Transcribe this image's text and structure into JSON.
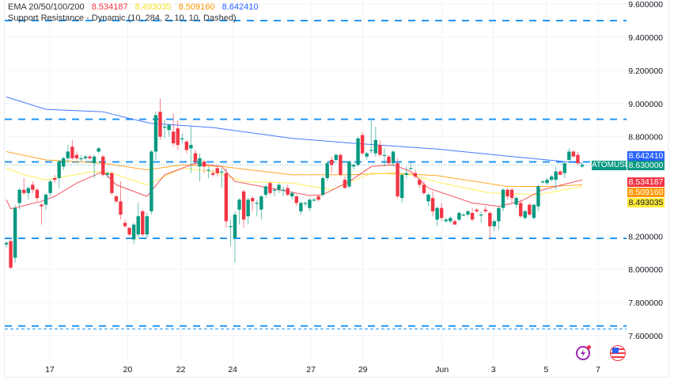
{
  "legend": {
    "ema_label": "EMA 20/50/100/200",
    "ema_values": [
      "8.534187",
      "8.493035",
      "8.509160",
      "8.642410"
    ],
    "sr_label": "Support Resistance - Dynamic (10, 284, 2, 10, 10, Dashed)"
  },
  "symbol": "ATOMUSD",
  "price_labels": [
    {
      "text": "8.642410",
      "bg": "#2962ff",
      "fg": "#ffffff"
    },
    {
      "text": "8.630000",
      "bg": "#089981",
      "fg": "#ffffff"
    },
    {
      "text": "8.534187",
      "bg": "#f23645",
      "fg": "#ffffff"
    },
    {
      "text": "8.509160",
      "bg": "#ff9800",
      "fg": "#ffffff"
    },
    {
      "text": "8.493035",
      "bg": "#ffeb3b",
      "fg": "#131722"
    }
  ],
  "icons": [
    "lightning-alert-icon",
    "us-flag-icon"
  ],
  "colors": {
    "up": "#089981",
    "down": "#f23645",
    "ema20": "#f23645",
    "ema50": "#ffeb3b",
    "ema100": "#ff9800",
    "ema200": "#2962ff",
    "sr": "#2196f3"
  },
  "chart_data": {
    "type": "candlestick",
    "title": "",
    "ylim": [
      7.58,
      9.62
    ],
    "grid": true,
    "y_ticks": [
      "9.600000",
      "9.400000",
      "9.200000",
      "9.000000",
      "8.800000",
      "8.200000",
      "8.000000",
      "7.800000",
      "7.600000"
    ],
    "y_tick_values": [
      9.6,
      9.4,
      9.2,
      9.0,
      8.8,
      8.2,
      8.0,
      7.8,
      7.6
    ],
    "x_ticks": [
      {
        "label": "17",
        "bar": 9.9
      },
      {
        "label": "20",
        "bar": 27.6
      },
      {
        "label": "22",
        "bar": 39.7
      },
      {
        "label": "24",
        "bar": 51.5
      },
      {
        "label": "27",
        "bar": 69.3
      },
      {
        "label": "29",
        "bar": 81.1
      },
      {
        "label": "Jun",
        "bar": 99.1
      },
      {
        "label": "3",
        "bar": 110.8
      },
      {
        "label": "5",
        "bar": 122.8
      },
      {
        "label": "7",
        "bar": 134.6
      }
    ],
    "last_price": 8.63,
    "support_resistance": [
      9.5,
      8.905,
      8.648,
      8.187,
      7.658,
      7.64
    ],
    "ohlc": [
      [
        8.15,
        8.17,
        8.13,
        8.16
      ],
      [
        8.17,
        8.18,
        8.0,
        8.01
      ],
      [
        8.07,
        8.39,
        8.04,
        8.37
      ],
      [
        8.4,
        8.49,
        8.36,
        8.48
      ],
      [
        8.48,
        8.55,
        8.45,
        8.46
      ],
      [
        8.46,
        8.5,
        8.42,
        8.49
      ],
      [
        8.51,
        8.53,
        8.46,
        8.48
      ],
      [
        8.48,
        8.49,
        8.41,
        8.43
      ],
      [
        8.39,
        8.4,
        8.27,
        8.38
      ],
      [
        8.39,
        8.46,
        8.36,
        8.45
      ],
      [
        8.46,
        8.54,
        8.44,
        8.53
      ],
      [
        8.55,
        8.57,
        8.52,
        8.54
      ],
      [
        8.55,
        8.66,
        8.49,
        8.65
      ],
      [
        8.62,
        8.68,
        8.6,
        8.67
      ],
      [
        8.67,
        8.75,
        8.64,
        8.71
      ],
      [
        8.74,
        8.78,
        8.66,
        8.67
      ],
      [
        8.69,
        8.71,
        8.66,
        8.67
      ],
      [
        8.67,
        8.69,
        8.65,
        8.67
      ],
      [
        8.67,
        8.69,
        8.66,
        8.68
      ],
      [
        8.68,
        8.69,
        8.66,
        8.67
      ],
      [
        8.64,
        8.69,
        8.55,
        8.68
      ],
      [
        8.71,
        8.74,
        8.7,
        8.73
      ],
      [
        8.68,
        8.69,
        8.56,
        8.57
      ],
      [
        8.57,
        8.59,
        8.55,
        8.58
      ],
      [
        8.58,
        8.59,
        8.45,
        8.46
      ],
      [
        8.44,
        8.45,
        8.4,
        8.41
      ],
      [
        8.41,
        8.53,
        8.3,
        8.33
      ],
      [
        8.28,
        8.3,
        8.25,
        8.26
      ],
      [
        8.25,
        8.26,
        8.2,
        8.21
      ],
      [
        8.18,
        8.28,
        8.15,
        8.27
      ],
      [
        8.21,
        8.4,
        8.19,
        8.32
      ],
      [
        8.35,
        8.36,
        8.2,
        8.21
      ],
      [
        8.21,
        8.34,
        8.19,
        8.32
      ],
      [
        8.35,
        8.72,
        8.33,
        8.71
      ],
      [
        8.71,
        8.95,
        8.66,
        8.93
      ],
      [
        8.95,
        9.03,
        8.78,
        8.8
      ],
      [
        8.86,
        8.9,
        8.79,
        8.86
      ],
      [
        8.84,
        8.88,
        8.8,
        8.87
      ],
      [
        8.83,
        8.94,
        8.74,
        8.76
      ],
      [
        8.85,
        8.9,
        8.72,
        8.75
      ],
      [
        8.79,
        8.82,
        8.76,
        8.79
      ],
      [
        8.77,
        8.78,
        8.7,
        8.72
      ],
      [
        8.73,
        8.86,
        8.58,
        8.75
      ],
      [
        8.7,
        8.72,
        8.63,
        8.65
      ],
      [
        8.62,
        8.7,
        8.53,
        8.67
      ],
      [
        8.65,
        8.66,
        8.58,
        8.62
      ],
      [
        8.6,
        8.62,
        8.55,
        8.6
      ],
      [
        8.58,
        8.6,
        8.56,
        8.57
      ],
      [
        8.61,
        8.62,
        8.56,
        8.58
      ],
      [
        8.59,
        8.61,
        8.49,
        8.59
      ],
      [
        8.58,
        8.61,
        8.25,
        8.29
      ],
      [
        8.26,
        8.3,
        8.14,
        8.26
      ],
      [
        8.19,
        8.35,
        8.04,
        8.33
      ],
      [
        8.36,
        8.43,
        8.27,
        8.42
      ],
      [
        8.47,
        8.48,
        8.25,
        8.3
      ],
      [
        8.32,
        8.43,
        8.27,
        8.42
      ],
      [
        8.43,
        8.44,
        8.35,
        8.41
      ],
      [
        8.4,
        8.42,
        8.32,
        8.4
      ],
      [
        8.36,
        8.45,
        8.3,
        8.44
      ],
      [
        8.45,
        8.51,
        8.43,
        8.5
      ],
      [
        8.52,
        8.53,
        8.45,
        8.46
      ],
      [
        8.48,
        8.49,
        8.44,
        8.48
      ],
      [
        8.48,
        8.52,
        8.46,
        8.51
      ],
      [
        8.48,
        8.5,
        8.44,
        8.48
      ],
      [
        8.49,
        8.51,
        8.44,
        8.45
      ],
      [
        8.44,
        8.47,
        8.42,
        8.46
      ],
      [
        8.44,
        8.45,
        8.38,
        8.4
      ],
      [
        8.35,
        8.41,
        8.33,
        8.4
      ],
      [
        8.4,
        8.41,
        8.38,
        8.4
      ],
      [
        8.37,
        8.43,
        8.35,
        8.42
      ],
      [
        8.42,
        8.43,
        8.41,
        8.42
      ],
      [
        8.44,
        8.45,
        8.41,
        8.42
      ],
      [
        8.45,
        8.56,
        8.44,
        8.55
      ],
      [
        8.55,
        8.65,
        8.53,
        8.64
      ],
      [
        8.66,
        8.68,
        8.58,
        8.63
      ],
      [
        8.66,
        8.7,
        8.64,
        8.69
      ],
      [
        8.69,
        8.7,
        8.56,
        8.57
      ],
      [
        8.54,
        8.56,
        8.49,
        8.49
      ],
      [
        8.5,
        8.66,
        8.49,
        8.65
      ],
      [
        8.62,
        8.64,
        8.6,
        8.63
      ],
      [
        8.63,
        8.8,
        8.62,
        8.79
      ],
      [
        8.81,
        8.83,
        8.69,
        8.7
      ],
      [
        8.68,
        8.71,
        8.66,
        8.7
      ],
      [
        8.72,
        8.9,
        8.7,
        8.72
      ],
      [
        8.7,
        8.86,
        8.68,
        8.78
      ],
      [
        8.75,
        8.78,
        8.68,
        8.69
      ],
      [
        8.69,
        8.73,
        8.62,
        8.69
      ],
      [
        8.68,
        8.69,
        8.63,
        8.64
      ],
      [
        8.64,
        8.72,
        8.62,
        8.71
      ],
      [
        8.64,
        8.67,
        8.43,
        8.44
      ],
      [
        8.43,
        8.58,
        8.4,
        8.57
      ],
      [
        8.57,
        8.62,
        8.55,
        8.58
      ],
      [
        8.61,
        8.65,
        8.6,
        8.61
      ],
      [
        8.58,
        8.6,
        8.55,
        8.56
      ],
      [
        8.54,
        8.55,
        8.49,
        8.51
      ],
      [
        8.51,
        8.53,
        8.45,
        8.46
      ],
      [
        8.41,
        8.46,
        8.38,
        8.45
      ],
      [
        8.43,
        8.47,
        8.32,
        8.35
      ],
      [
        8.3,
        8.38,
        8.26,
        8.37
      ],
      [
        8.37,
        8.4,
        8.29,
        8.31
      ],
      [
        8.29,
        8.31,
        8.28,
        8.3
      ],
      [
        8.29,
        8.32,
        8.28,
        8.31
      ],
      [
        8.29,
        8.3,
        8.27,
        8.27
      ],
      [
        8.3,
        8.35,
        8.29,
        8.34
      ],
      [
        8.33,
        8.34,
        8.32,
        8.33
      ],
      [
        8.33,
        8.36,
        8.32,
        8.35
      ],
      [
        8.34,
        8.37,
        8.29,
        8.3
      ],
      [
        8.36,
        8.37,
        8.34,
        8.35
      ],
      [
        8.33,
        8.35,
        8.28,
        8.33
      ],
      [
        8.36,
        8.38,
        8.34,
        8.35
      ],
      [
        8.34,
        8.35,
        8.18,
        8.26
      ],
      [
        8.26,
        8.3,
        8.23,
        8.29
      ],
      [
        8.29,
        8.38,
        8.24,
        8.37
      ],
      [
        8.37,
        8.49,
        8.35,
        8.48
      ],
      [
        8.48,
        8.49,
        8.42,
        8.44
      ],
      [
        8.48,
        8.49,
        8.4,
        8.43
      ],
      [
        8.39,
        8.44,
        8.37,
        8.43
      ],
      [
        8.4,
        8.42,
        8.31,
        8.32
      ],
      [
        8.31,
        8.36,
        8.3,
        8.35
      ],
      [
        8.39,
        8.4,
        8.32,
        8.33
      ],
      [
        8.31,
        8.39,
        8.3,
        8.39
      ],
      [
        8.38,
        8.51,
        8.35,
        8.5
      ],
      [
        8.53,
        8.54,
        8.52,
        8.53
      ],
      [
        8.52,
        8.55,
        8.51,
        8.54
      ],
      [
        8.54,
        8.57,
        8.53,
        8.56
      ],
      [
        8.54,
        8.62,
        8.48,
        8.59
      ],
      [
        8.59,
        8.6,
        8.57,
        8.57
      ],
      [
        8.58,
        8.65,
        8.55,
        8.64
      ],
      [
        8.66,
        8.73,
        8.64,
        8.71
      ],
      [
        8.71,
        8.72,
        8.68,
        8.68
      ],
      [
        8.69,
        8.71,
        8.63,
        8.64
      ],
      [
        8.62,
        8.64,
        8.61,
        8.63
      ]
    ],
    "series": [
      {
        "name": "EMA 200",
        "color": "#2962ff",
        "points": [
          [
            0,
            9.04
          ],
          [
            9,
            8.965
          ],
          [
            22,
            8.95
          ],
          [
            28,
            8.91
          ],
          [
            33,
            8.88
          ],
          [
            47,
            8.855
          ],
          [
            65,
            8.79
          ],
          [
            79,
            8.76
          ],
          [
            98,
            8.725
          ],
          [
            115,
            8.68
          ],
          [
            131,
            8.64
          ]
        ]
      },
      {
        "name": "EMA 100",
        "color": "#ff9800",
        "points": [
          [
            0,
            8.71
          ],
          [
            9,
            8.66
          ],
          [
            22,
            8.64
          ],
          [
            32,
            8.6
          ],
          [
            40,
            8.63
          ],
          [
            49,
            8.62
          ],
          [
            65,
            8.57
          ],
          [
            78,
            8.57
          ],
          [
            88,
            8.58
          ],
          [
            98,
            8.565
          ],
          [
            114,
            8.5
          ],
          [
            124,
            8.5
          ],
          [
            131,
            8.51
          ]
        ]
      },
      {
        "name": "EMA 50",
        "color": "#ffeb3b",
        "points": [
          [
            0,
            8.61
          ],
          [
            4,
            8.57
          ],
          [
            9,
            8.54
          ],
          [
            20,
            8.59
          ],
          [
            24,
            8.58
          ],
          [
            32,
            8.51
          ],
          [
            40,
            8.61
          ],
          [
            47,
            8.59
          ],
          [
            54,
            8.53
          ],
          [
            65,
            8.52
          ],
          [
            74,
            8.48
          ],
          [
            83,
            8.58
          ],
          [
            92,
            8.57
          ],
          [
            99,
            8.52
          ],
          [
            110,
            8.46
          ],
          [
            121,
            8.45
          ],
          [
            131,
            8.5
          ]
        ]
      },
      {
        "name": "EMA 20",
        "color": "#f23645",
        "points": [
          [
            0,
            8.42
          ],
          [
            1,
            8.365
          ],
          [
            8,
            8.41
          ],
          [
            11,
            8.44
          ],
          [
            16,
            8.52
          ],
          [
            22,
            8.59
          ],
          [
            25,
            8.51
          ],
          [
            32,
            8.44
          ],
          [
            36,
            8.57
          ],
          [
            43,
            8.64
          ],
          [
            49,
            8.62
          ],
          [
            52,
            8.53
          ],
          [
            60,
            8.49
          ],
          [
            69,
            8.445
          ],
          [
            72,
            8.45
          ],
          [
            78,
            8.53
          ],
          [
            83,
            8.62
          ],
          [
            88,
            8.63
          ],
          [
            92,
            8.59
          ],
          [
            96,
            8.49
          ],
          [
            106,
            8.4
          ],
          [
            112,
            8.38
          ],
          [
            117,
            8.41
          ],
          [
            122,
            8.48
          ],
          [
            131,
            8.54
          ]
        ]
      }
    ]
  }
}
